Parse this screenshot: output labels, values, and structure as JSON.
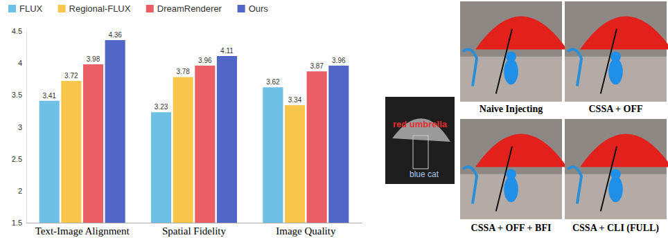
{
  "chart_data": {
    "type": "bar",
    "categories": [
      "Text-Image Alignment",
      "Spatial Fidelity",
      "Image Quality"
    ],
    "series": [
      {
        "name": "FLUX",
        "color": "#6ec1e4",
        "values": [
          3.41,
          3.23,
          3.62
        ]
      },
      {
        "name": "Regional-FLUX",
        "color": "#f8c64c",
        "values": [
          3.72,
          3.78,
          3.34
        ]
      },
      {
        "name": "DreamRenderer",
        "color": "#ea5f66",
        "values": [
          3.98,
          3.96,
          3.87
        ]
      },
      {
        "name": "Ours",
        "color": "#5166c7",
        "values": [
          4.36,
          4.11,
          3.96
        ]
      }
    ],
    "ylim": [
      1.5,
      4.5
    ],
    "yticks": [
      1.5,
      2,
      2.5,
      3,
      3.5,
      4,
      4.5
    ],
    "grid": false,
    "legend": "top",
    "data_labels": true
  },
  "figure": {
    "input_labels": [
      "red umbrella",
      "blue cat"
    ],
    "panels": [
      "Naive Injecting",
      "CSSA + OFF",
      "CSSA + OFF + BFI",
      "CSSA + CLI (FULL)"
    ]
  }
}
